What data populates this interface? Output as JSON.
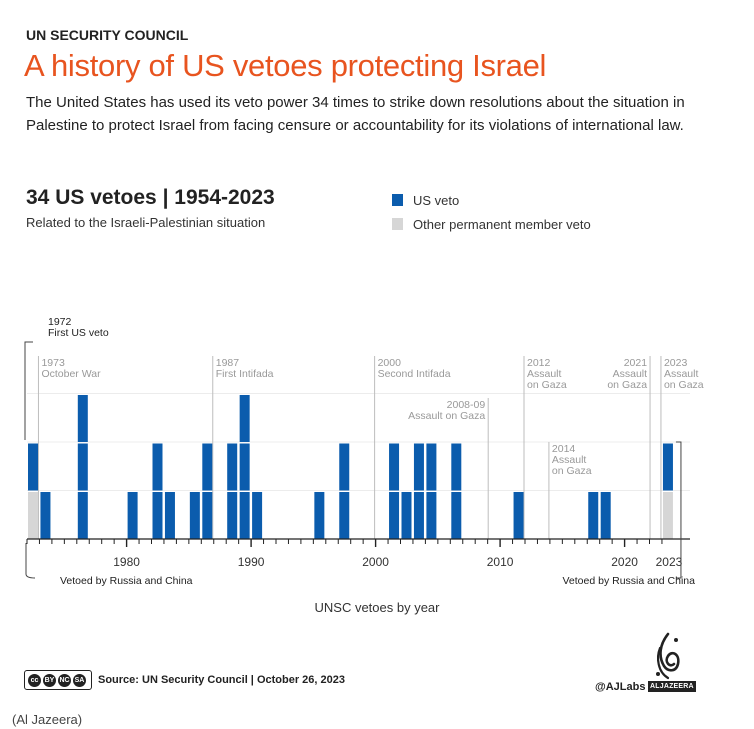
{
  "header": {
    "kicker": "UN SECURITY COUNCIL",
    "title": "A history of US vetoes protecting Israel",
    "description": "The United States has used its veto power 34 times to strike down resolutions about the situation in Palestine to protect Israel from facing censure or accountability for its violations of international law.",
    "subtitle": "34 US vetoes | 1954-2023",
    "subtitle_caption": "Related to the Israeli-Palestinian situation"
  },
  "legend": {
    "us_label": "US veto",
    "other_label": "Other permanent member veto"
  },
  "colors": {
    "us": "#0b5cad",
    "other": "#d6d6d6",
    "title": "#e8541f",
    "annotation": "#999999"
  },
  "chart_data": {
    "type": "bar",
    "stacked": true,
    "title": "34 US vetoes | 1954-2023",
    "xlabel": "UNSC vetoes by year",
    "ylabel": "",
    "xlim": [
      1972,
      2023
    ],
    "ylim": [
      0,
      3
    ],
    "x_ticks": [
      1980,
      1990,
      2000,
      2010,
      2020,
      2023
    ],
    "series": [
      {
        "name": "Other permanent member veto",
        "key": "other",
        "points": [
          {
            "year": 1972,
            "value": 1
          },
          {
            "year": 2023,
            "value": 1
          }
        ]
      },
      {
        "name": "US veto",
        "key": "us",
        "points": [
          {
            "year": 1972,
            "value": 1
          },
          {
            "year": 1973,
            "value": 1
          },
          {
            "year": 1976,
            "value": 3
          },
          {
            "year": 1980,
            "value": 1
          },
          {
            "year": 1982,
            "value": 2
          },
          {
            "year": 1983,
            "value": 1
          },
          {
            "year": 1985,
            "value": 1
          },
          {
            "year": 1986,
            "value": 2
          },
          {
            "year": 1988,
            "value": 2
          },
          {
            "year": 1989,
            "value": 3
          },
          {
            "year": 1990,
            "value": 1
          },
          {
            "year": 1995,
            "value": 1
          },
          {
            "year": 1997,
            "value": 2
          },
          {
            "year": 2001,
            "value": 2
          },
          {
            "year": 2002,
            "value": 1
          },
          {
            "year": 2003,
            "value": 2
          },
          {
            "year": 2004,
            "value": 2
          },
          {
            "year": 2006,
            "value": 2
          },
          {
            "year": 2011,
            "value": 1
          },
          {
            "year": 2017,
            "value": 1
          },
          {
            "year": 2018,
            "value": 1
          },
          {
            "year": 2023,
            "value": 1
          }
        ]
      }
    ],
    "annotations": [
      {
        "name": "first-us-veto",
        "year": 1972,
        "lines": [
          "1972",
          "First US veto"
        ],
        "style": "bracket"
      },
      {
        "name": "october-war",
        "year": 1973,
        "lines": [
          "1973",
          "October War"
        ],
        "align": "start",
        "tall": true
      },
      {
        "name": "first-intifada",
        "year": 1987,
        "lines": [
          "1987",
          "First Intifada"
        ],
        "align": "start",
        "tall": true
      },
      {
        "name": "second-intifada",
        "year": 2000,
        "lines": [
          "2000",
          "Second Intifada"
        ],
        "align": "start",
        "tall": true
      },
      {
        "name": "assault-2008",
        "year": 2008,
        "lines": [
          "2008-09",
          "Assault on Gaza"
        ],
        "align": "end",
        "tall": false
      },
      {
        "name": "assault-2012",
        "year": 2012,
        "lines": [
          "2012",
          "Assault",
          "on Gaza"
        ],
        "align": "start",
        "tall": true
      },
      {
        "name": "assault-2014",
        "year": 2014,
        "lines": [
          "2014",
          "Assault",
          "on Gaza"
        ],
        "align": "start",
        "tall": false
      },
      {
        "name": "assault-2021",
        "year": 2021,
        "lines": [
          "2021",
          "Assault",
          "on Gaza"
        ],
        "align": "end",
        "tall": true
      },
      {
        "name": "assault-2023",
        "year": 2023,
        "lines": [
          "2023",
          "Assault",
          "on Gaza"
        ],
        "align": "start",
        "tall": true
      }
    ],
    "bottom_notes": [
      {
        "name": "note-1972",
        "year": 1972,
        "text": "Vetoed by Russia and China"
      },
      {
        "name": "note-2023",
        "year": 2023,
        "text": "Vetoed by Russia and China"
      }
    ]
  },
  "footer": {
    "license": "cc by nc sa",
    "source": "Source: UN Security Council | October 26, 2023",
    "handle": "@AJLabs",
    "brand": "ALJAZEERA"
  },
  "credit": "(Al Jazeera)"
}
